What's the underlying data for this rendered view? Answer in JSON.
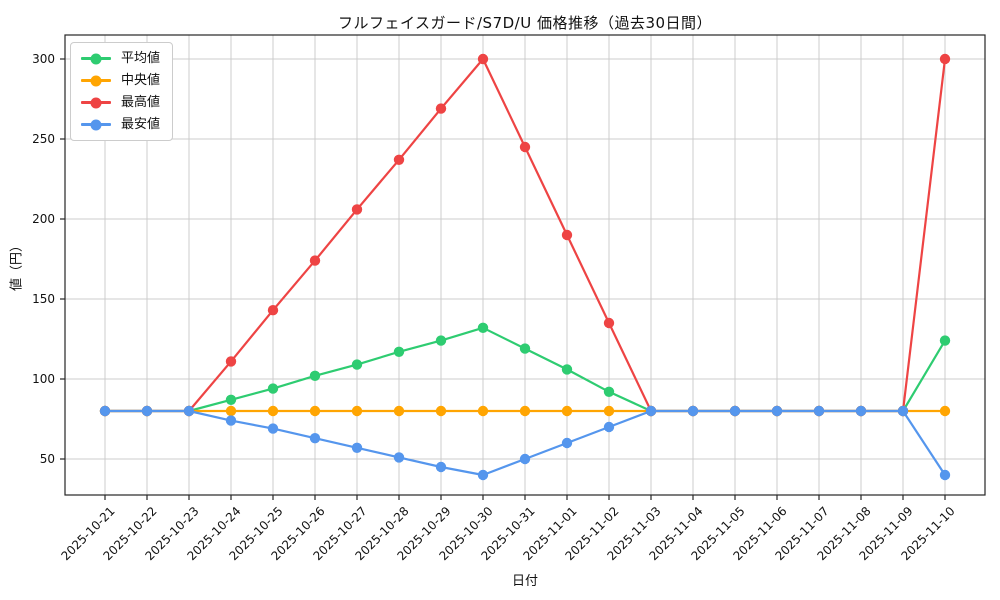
{
  "title": "フルフェイスガード/S7D/U 価格推移（過去30日間）",
  "chart_data": {
    "type": "line",
    "title": "フルフェイスガード/S7D/U 価格推移（過去30日間）",
    "xlabel": "日付",
    "ylabel": "値（円）",
    "x": [
      "2025-10-21",
      "2025-10-22",
      "2025-10-23",
      "2025-10-24",
      "2025-10-25",
      "2025-10-26",
      "2025-10-27",
      "2025-10-28",
      "2025-10-29",
      "2025-10-30",
      "2025-10-31",
      "2025-11-01",
      "2025-11-02",
      "2025-11-03",
      "2025-11-04",
      "2025-11-05",
      "2025-11-06",
      "2025-11-07",
      "2025-11-08",
      "2025-11-09",
      "2025-11-10"
    ],
    "series": [
      {
        "key": "average",
        "name": "平均値",
        "color": "#2ecc71",
        "values": [
          80,
          80,
          80,
          87,
          94,
          102,
          109,
          117,
          124,
          132,
          119,
          106,
          92,
          80,
          80,
          80,
          80,
          80,
          80,
          80,
          124
        ]
      },
      {
        "key": "median",
        "name": "中央値",
        "color": "#ffa502",
        "values": [
          80,
          80,
          80,
          80,
          80,
          80,
          80,
          80,
          80,
          80,
          80,
          80,
          80,
          80,
          80,
          80,
          80,
          80,
          80,
          80,
          80
        ]
      },
      {
        "key": "max",
        "name": "最高値",
        "color": "#ee4444",
        "values": [
          80,
          80,
          80,
          111,
          143,
          174,
          206,
          237,
          269,
          300,
          245,
          190,
          135,
          80,
          80,
          80,
          80,
          80,
          80,
          80,
          300
        ]
      },
      {
        "key": "min",
        "name": "最安値",
        "color": "#5596ed",
        "values": [
          80,
          80,
          80,
          74,
          69,
          63,
          57,
          51,
          45,
          40,
          50,
          60,
          70,
          80,
          80,
          80,
          80,
          80,
          80,
          80,
          40
        ]
      }
    ],
    "y_ticks": [
      50,
      100,
      150,
      200,
      250,
      300
    ],
    "ylim": [
      27.5,
      315
    ],
    "grid": true,
    "grid_color": "#cccccc",
    "axis_color": "#262626",
    "legend_position": "upper left"
  }
}
